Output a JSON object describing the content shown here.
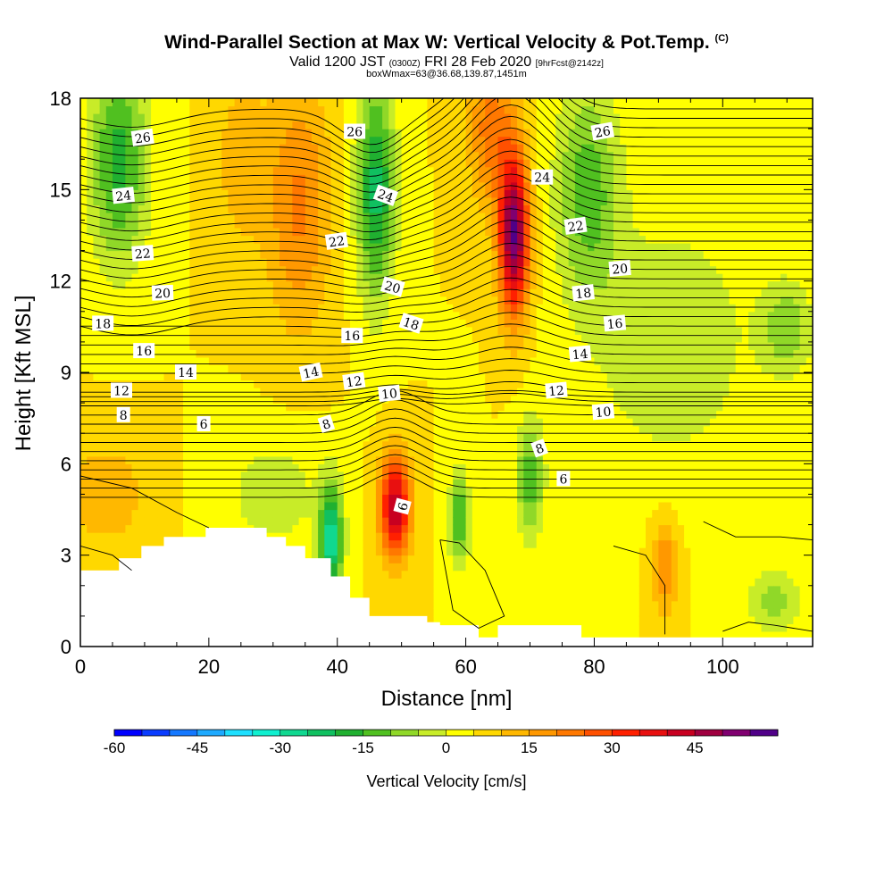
{
  "header": {
    "title": "Wind-Parallel Section at Max W: Vertical Velocity & Pot.Temp.",
    "title_mark": "(C)",
    "valid_pre": "Valid 1200 JST",
    "valid_z": "(0300Z)",
    "valid_date": "FRI 28 Feb 2020",
    "fcst": "[9hrFcst@2142z]",
    "box": "boxWmax=63@36.68,139.87,1451m"
  },
  "chart_data": {
    "type": "heatmap",
    "title": "Wind-Parallel Section at Max W: Vertical Velocity & Pot.Temp.",
    "xlabel": "Distance [nm]",
    "ylabel": "Height [Kft MSL]",
    "xlim": [
      0,
      114
    ],
    "ylim": [
      0,
      18
    ],
    "x_ticks": [
      "0",
      "20",
      "40",
      "60",
      "80",
      "100"
    ],
    "y_ticks": [
      "0",
      "3",
      "6",
      "9",
      "12",
      "15",
      "18"
    ],
    "colorbar": {
      "label": "Vertical Velocity [cm/s]",
      "ticks": [
        "-60",
        "-45",
        "-30",
        "-15",
        "0",
        "15",
        "30",
        "45"
      ],
      "min": -60,
      "max": 55,
      "step": 5,
      "colors": [
        "#0000ff",
        "#0a3cff",
        "#1478ff",
        "#1eaaff",
        "#1ee0ff",
        "#10f0d0",
        "#10d890",
        "#10c060",
        "#20b030",
        "#50c020",
        "#90d828",
        "#c8ec28",
        "#ffff00",
        "#ffd800",
        "#ffb800",
        "#ff9800",
        "#ff7800",
        "#ff5000",
        "#ff2000",
        "#e81010",
        "#c80020",
        "#a00040",
        "#800070",
        "#500088"
      ]
    },
    "features": [
      {
        "type": "updraft",
        "x": 49,
        "z_range": [
          1,
          7
        ],
        "peak_w": 40
      },
      {
        "type": "updraft",
        "x": 67,
        "z_range": [
          10,
          18
        ],
        "peak_w": 55
      },
      {
        "type": "downdraft",
        "x": 39,
        "z_range": [
          2,
          6
        ],
        "peak_w": -30
      },
      {
        "type": "downdraft",
        "x": 46,
        "z_range": [
          11,
          18
        ],
        "peak_w": -25
      },
      {
        "type": "downdraft",
        "x": 6,
        "z_range": [
          12,
          18
        ],
        "peak_w": -20
      }
    ],
    "theta_levels": [
      6,
      8,
      10,
      12,
      14,
      16,
      18,
      20,
      22,
      24,
      26
    ],
    "contour_labels": [
      {
        "text": "26",
        "x": 9.7,
        "z": 16.7,
        "rot": -8
      },
      {
        "text": "26",
        "x": 42.7,
        "z": 16.9,
        "rot": 0
      },
      {
        "text": "26",
        "x": 81.3,
        "z": 16.9,
        "rot": -10
      },
      {
        "text": "24",
        "x": 6.7,
        "z": 14.8,
        "rot": -6
      },
      {
        "text": "24",
        "x": 47.5,
        "z": 14.8,
        "rot": 20
      },
      {
        "text": "24",
        "x": 71.9,
        "z": 15.4,
        "rot": 0
      },
      {
        "text": "22",
        "x": 9.7,
        "z": 12.9,
        "rot": -4
      },
      {
        "text": "22",
        "x": 39.9,
        "z": 13.3,
        "rot": -8
      },
      {
        "text": "22",
        "x": 77.1,
        "z": 13.8,
        "rot": -8
      },
      {
        "text": "20",
        "x": 12.8,
        "z": 11.6,
        "rot": -2
      },
      {
        "text": "20",
        "x": 48.6,
        "z": 11.8,
        "rot": 16
      },
      {
        "text": "20",
        "x": 84.0,
        "z": 12.4,
        "rot": -5
      },
      {
        "text": "18",
        "x": 3.5,
        "z": 10.6,
        "rot": 0
      },
      {
        "text": "18",
        "x": 51.5,
        "z": 10.6,
        "rot": 18
      },
      {
        "text": "18",
        "x": 78.3,
        "z": 11.6,
        "rot": -6
      },
      {
        "text": "16",
        "x": 9.9,
        "z": 9.7,
        "rot": 0
      },
      {
        "text": "16",
        "x": 42.3,
        "z": 10.2,
        "rot": 0
      },
      {
        "text": "16",
        "x": 83.2,
        "z": 10.6,
        "rot": -5
      },
      {
        "text": "14",
        "x": 16.4,
        "z": 9.0,
        "rot": 0
      },
      {
        "text": "14",
        "x": 35.9,
        "z": 9.0,
        "rot": -12
      },
      {
        "text": "14",
        "x": 77.8,
        "z": 9.6,
        "rot": -5
      },
      {
        "text": "12",
        "x": 6.4,
        "z": 8.4,
        "rot": 0
      },
      {
        "text": "12",
        "x": 42.6,
        "z": 8.7,
        "rot": -8
      },
      {
        "text": "12",
        "x": 74.1,
        "z": 8.4,
        "rot": -5
      },
      {
        "text": "10",
        "x": 48.1,
        "z": 8.3,
        "rot": -6
      },
      {
        "text": "10",
        "x": 81.4,
        "z": 7.7,
        "rot": -5
      },
      {
        "text": "8",
        "x": 6.7,
        "z": 7.6,
        "rot": 0
      },
      {
        "text": "8",
        "x": 38.3,
        "z": 7.3,
        "rot": -18
      },
      {
        "text": "8",
        "x": 71.5,
        "z": 6.5,
        "rot": -20
      },
      {
        "text": "6",
        "x": 19.2,
        "z": 7.3,
        "rot": 0
      },
      {
        "text": "6",
        "x": 50.2,
        "z": 4.6,
        "rot": -75
      },
      {
        "text": "6",
        "x": 75.2,
        "z": 5.5,
        "rot": 0
      }
    ]
  }
}
